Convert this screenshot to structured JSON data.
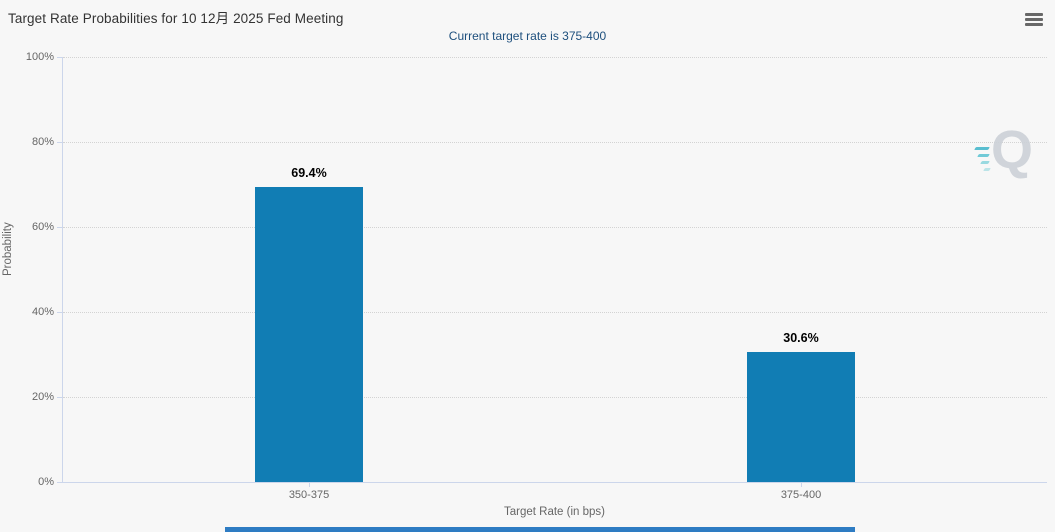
{
  "header": {
    "title": "Target Rate Probabilities for 10 12月 2025 Fed Meeting",
    "subtitle": "Current target rate is 375-400",
    "menu_icon": "hamburger-icon"
  },
  "watermark": {
    "letter": "Q"
  },
  "colors": {
    "background": "#f7f7f7",
    "bar": "#117db4",
    "subtitle_text": "#1d4f7d",
    "axis_text": "#666666",
    "scrollbar": "#2e7cc3"
  },
  "chart_data": {
    "type": "bar",
    "title": "Target Rate Probabilities for 10 12月 2025 Fed Meeting",
    "subtitle": "Current target rate is 375-400",
    "categories": [
      "350-375",
      "375-400"
    ],
    "values": [
      69.4,
      30.6
    ],
    "value_labels": [
      "69.4%",
      "30.6%"
    ],
    "xlabel": "Target Rate (in bps)",
    "ylabel": "Probability",
    "ylim": [
      0,
      100
    ],
    "ytick_labels": [
      "0%",
      "20%",
      "40%",
      "60%",
      "80%",
      "100%"
    ],
    "grid": "dotted-horizontal",
    "legend": "none"
  }
}
